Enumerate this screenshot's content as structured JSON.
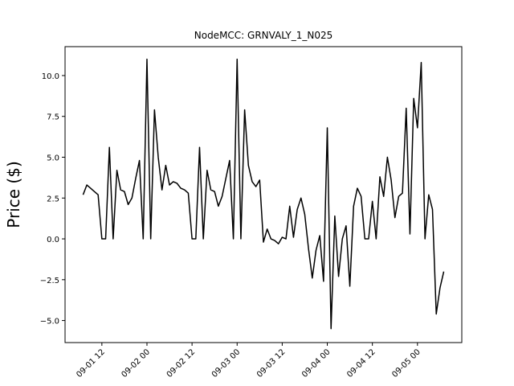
{
  "chart_data": {
    "type": "line",
    "title": "NodeMCC: GRNVALY_1_N025",
    "y_label": "Price ($)",
    "color": "#000000",
    "x": [
      "09-01 07",
      "09-01 08",
      "09-01 09",
      "09-01 10",
      "09-01 11",
      "09-01 12",
      "09-01 13",
      "09-01 14",
      "09-01 15",
      "09-01 16",
      "09-01 17",
      "09-01 18",
      "09-01 19",
      "09-01 20",
      "09-01 21",
      "09-01 22",
      "09-01 23",
      "09-02 00",
      "09-02 01",
      "09-02 02",
      "09-02 03",
      "09-02 04",
      "09-02 05",
      "09-02 06",
      "09-02 07",
      "09-02 08",
      "09-02 09",
      "09-02 10",
      "09-02 11",
      "09-02 12",
      "09-02 13",
      "09-02 14",
      "09-02 15",
      "09-02 16",
      "09-02 17",
      "09-02 18",
      "09-02 19",
      "09-02 20",
      "09-02 21",
      "09-02 22",
      "09-02 23",
      "09-03 00",
      "09-03 01",
      "09-03 02",
      "09-03 03",
      "09-03 04",
      "09-03 05",
      "09-03 06",
      "09-03 07",
      "09-03 08",
      "09-03 09",
      "09-03 10",
      "09-03 11",
      "09-03 12",
      "09-03 13",
      "09-03 14",
      "09-03 15",
      "09-03 16",
      "09-03 17",
      "09-03 18",
      "09-03 19",
      "09-03 20",
      "09-03 21",
      "09-03 22",
      "09-03 23",
      "09-04 00",
      "09-04 01",
      "09-04 02",
      "09-04 03",
      "09-04 04",
      "09-04 05",
      "09-04 06",
      "09-04 07",
      "09-04 08",
      "09-04 09",
      "09-04 10",
      "09-04 11",
      "09-04 12",
      "09-04 13",
      "09-04 14",
      "09-04 15",
      "09-04 16",
      "09-04 17",
      "09-04 18",
      "09-04 19",
      "09-04 20",
      "09-04 21",
      "09-04 22",
      "09-04 23",
      "09-05 00",
      "09-05 01",
      "09-05 02",
      "09-05 03",
      "09-05 04",
      "09-05 05",
      "09-05 06",
      "09-05 07"
    ],
    "values": [
      2.7,
      3.3,
      3.1,
      2.9,
      2.7,
      0,
      0,
      5.6,
      0,
      4.2,
      3.0,
      2.9,
      2.1,
      2.5,
      3.7,
      4.8,
      0,
      11.0,
      0,
      7.9,
      5.0,
      3.0,
      4.5,
      3.3,
      3.5,
      3.4,
      3.1,
      3.0,
      2.8,
      0,
      0,
      5.6,
      0,
      4.2,
      3.0,
      2.9,
      2.0,
      2.6,
      3.7,
      4.8,
      0,
      11.0,
      0,
      7.9,
      4.5,
      3.5,
      3.2,
      3.6,
      -0.2,
      0.6,
      0.0,
      -0.1,
      -0.3,
      0.1,
      0.0,
      2.0,
      0.1,
      1.8,
      2.5,
      1.5,
      -0.6,
      -2.4,
      -0.7,
      0.2,
      -2.6,
      6.8,
      -5.5,
      1.4,
      -2.3,
      0.0,
      0.8,
      -2.9,
      2.0,
      3.1,
      2.6,
      0,
      0,
      2.3,
      0,
      3.8,
      2.6,
      5.0,
      3.6,
      1.3,
      2.6,
      2.8,
      8.0,
      0.3,
      8.6,
      6.8,
      10.8,
      0,
      2.7,
      1.8,
      -4.6,
      -3.0,
      -2.0
    ],
    "xlim": [
      "09-01 02:12",
      "09-05 11:48"
    ],
    "xticks": [
      "09-01 12",
      "09-02 00",
      "09-02 12",
      "09-03 00",
      "09-03 12",
      "09-04 00",
      "09-04 12",
      "09-05 00"
    ],
    "ylim": [
      -6.35,
      11.77
    ],
    "yticks": [
      {
        "value": -5,
        "label": "−5.0"
      },
      {
        "value": -2.5,
        "label": "−2.5"
      },
      {
        "value": 0,
        "label": "0.0"
      },
      2.5,
      {
        "value": 5,
        "label": "5.0"
      },
      7.5,
      {
        "value": 10,
        "label": "10.0"
      }
    ]
  }
}
